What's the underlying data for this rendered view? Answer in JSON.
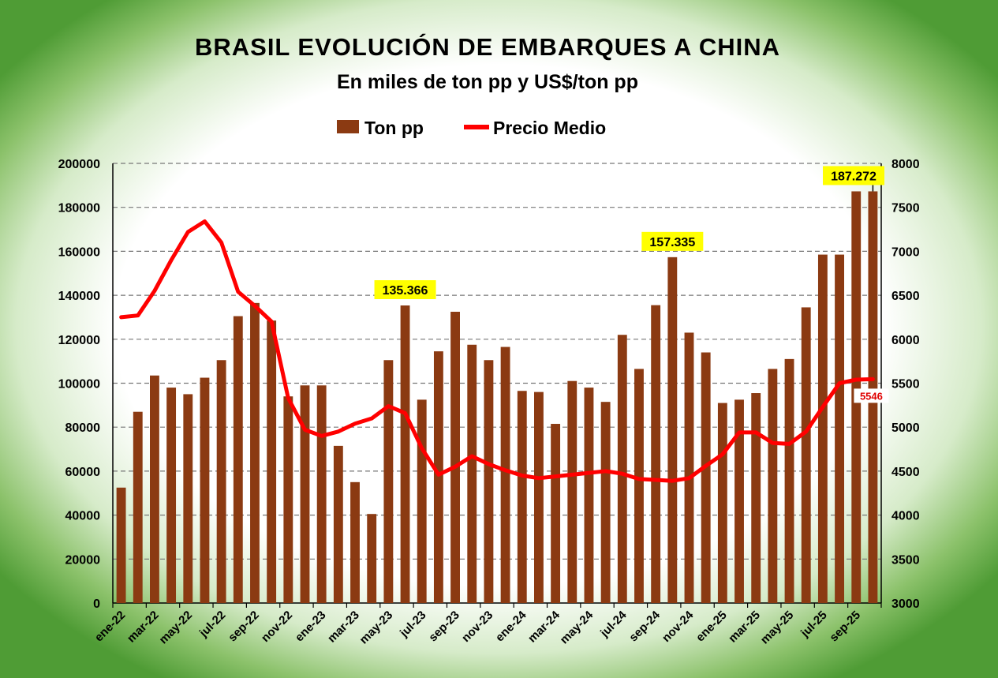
{
  "chart_data": {
    "type": "bar+line",
    "title": "BRASIL EVOLUCIÓN DE EMBARQUES A CHINA",
    "subtitle": "En miles de ton pp y US$/ton pp",
    "legend": [
      "Ton pp",
      "Precio Medio"
    ],
    "legend_position": "top-center",
    "months": [
      "ene-22",
      "feb-22",
      "mar-22",
      "abr-22",
      "may-22",
      "jun-22",
      "jul-22",
      "ago-22",
      "sep-22",
      "oct-22",
      "nov-22",
      "dic-22",
      "ene-23",
      "feb-23",
      "mar-23",
      "abr-23",
      "may-23",
      "jun-23",
      "jul-23",
      "ago-23",
      "sep-23",
      "oct-23",
      "nov-23",
      "dic-23",
      "ene-24",
      "feb-24",
      "mar-24",
      "abr-24",
      "may-24",
      "jun-24",
      "jul-24",
      "ago-24",
      "sep-24",
      "oct-24",
      "nov-24",
      "dic-24",
      "ene-25",
      "feb-25",
      "mar-25",
      "abr-25",
      "may-25",
      "jun-25",
      "jul-25",
      "ago-25",
      "sep-25",
      "oct-25"
    ],
    "x_tick_labels": [
      "ene-22",
      "mar-22",
      "may-22",
      "jul-22",
      "sep-22",
      "nov-22",
      "ene-23",
      "mar-23",
      "may-23",
      "jul-23",
      "sep-23",
      "nov-23",
      "ene-24",
      "mar-24",
      "may-24",
      "jul-24",
      "sep-24",
      "nov-24",
      "ene-25",
      "mar-25",
      "may-25",
      "jul-25",
      "sep-25"
    ],
    "series": [
      {
        "name": "Ton pp",
        "type": "bar",
        "axis": "left",
        "color": "#8B3A12",
        "values": [
          52500,
          87000,
          103500,
          98000,
          95000,
          102500,
          110500,
          130500,
          136500,
          128500,
          94000,
          99000,
          99000,
          71500,
          55000,
          40500,
          110500,
          135366,
          92500,
          114500,
          132500,
          117500,
          110500,
          116500,
          96500,
          96000,
          81500,
          101000,
          98000,
          91500,
          122000,
          106500,
          135500,
          157335,
          123000,
          114000,
          91000,
          92500,
          95500,
          106500,
          111000,
          134500,
          158500,
          158500,
          187272,
          187272
        ]
      },
      {
        "name": "Precio Medio",
        "type": "line",
        "axis": "right",
        "color": "#ff0000",
        "values": [
          6250,
          6270,
          6550,
          6900,
          7220,
          7340,
          7100,
          6540,
          6380,
          6200,
          5330,
          4970,
          4900,
          4950,
          5040,
          5100,
          5240,
          5160,
          4760,
          4460,
          4550,
          4670,
          4580,
          4510,
          4450,
          4420,
          4440,
          4460,
          4480,
          4500,
          4470,
          4410,
          4400,
          4390,
          4420,
          4560,
          4690,
          4940,
          4940,
          4820,
          4810,
          4950,
          5230,
          5500,
          5540,
          5546
        ]
      }
    ],
    "y_left": {
      "min": 0,
      "max": 200000,
      "step": 20000,
      "ticks": [
        "0",
        "20000",
        "40000",
        "60000",
        "80000",
        "100000",
        "120000",
        "140000",
        "160000",
        "180000",
        "200000"
      ]
    },
    "y_right": {
      "min": 3000,
      "max": 8000,
      "step": 500,
      "ticks": [
        "3000",
        "3500",
        "4000",
        "4500",
        "5000",
        "5500",
        "6000",
        "6500",
        "7000",
        "7500",
        "8000"
      ]
    },
    "annotations": [
      {
        "label": "135.366",
        "month_index": 17,
        "series": "Ton pp"
      },
      {
        "label": "157.335",
        "month_index": 33,
        "series": "Ton pp"
      },
      {
        "label": "187.272",
        "month_index": 45,
        "series": "Ton pp"
      },
      {
        "label": "5546",
        "month_index": 45,
        "series": "Precio Medio"
      }
    ],
    "colors": {
      "bar": "#8B3A12",
      "line": "#ff0000",
      "callout_bg": "#ffff00",
      "grid": "#777777"
    },
    "grid": true
  }
}
